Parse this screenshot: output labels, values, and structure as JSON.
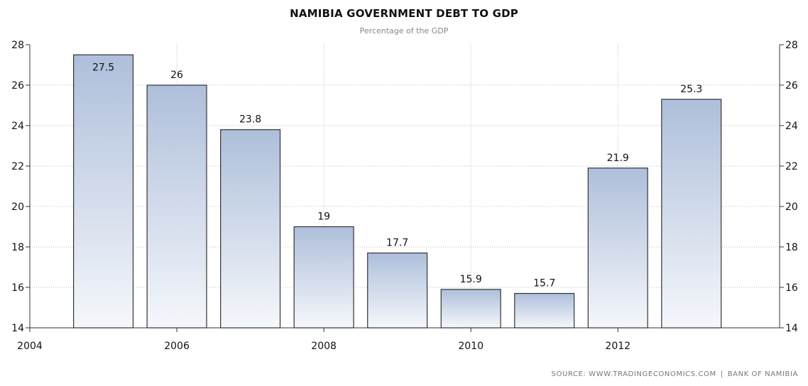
{
  "chart_data": {
    "type": "bar",
    "title": "NAMIBIA GOVERNMENT DEBT TO GDP",
    "subtitle": "Percentage of the GDP",
    "xlabel": "",
    "ylabel": "",
    "x": [
      2005,
      2006,
      2007,
      2008,
      2009,
      2010,
      2011,
      2012,
      2013
    ],
    "values": [
      27.5,
      26,
      23.8,
      19,
      17.7,
      15.9,
      15.7,
      21.9,
      25.3
    ],
    "data_labels": [
      "27.5",
      "26",
      "23.8",
      "19",
      "17.7",
      "15.9",
      "15.7",
      "21.9",
      "25.3"
    ],
    "xlim": [
      2004,
      2014.2
    ],
    "ylim": [
      14,
      28
    ],
    "x_ticks": [
      "2004",
      "2006",
      "2008",
      "2010",
      "2012"
    ],
    "y_ticks": [
      "14",
      "16",
      "18",
      "20",
      "22",
      "24",
      "26",
      "28"
    ],
    "grid": true,
    "legend": "none",
    "bar_fill_top": "#aebfdb",
    "bar_fill_bottom": "#f5f7fb",
    "bar_stroke": "#333333",
    "grid_color": "#bbbbbb"
  },
  "source": {
    "left": "SOURCE:  WWW.TRADINGECONOMICS.COM",
    "separator": "|",
    "right": "BANK OF NAMIBIA"
  }
}
